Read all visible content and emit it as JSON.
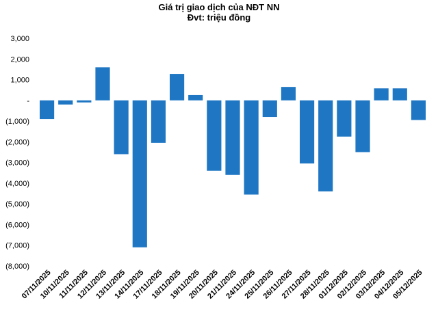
{
  "chart_data": {
    "type": "bar",
    "title": "Giá trị giao dịch của NĐT NN",
    "subtitle": "Đvt: triệu đồng",
    "categories": [
      "07/11/2025",
      "10/11/2025",
      "11/11/2025",
      "12/11/2025",
      "13/11/2025",
      "14/11/2025",
      "17/11/2025",
      "18/11/2025",
      "19/11/2025",
      "20/11/2025",
      "21/11/2025",
      "24/11/2025",
      "25/11/2025",
      "26/11/2025",
      "27/11/2025",
      "28/11/2025",
      "01/12/2025",
      "02/12/2025",
      "03/12/2025",
      "04/12/2025",
      "05/12/2025"
    ],
    "values": [
      -900,
      -200,
      -100,
      1600,
      -2600,
      -7100,
      -2050,
      1280,
      260,
      -3400,
      -3600,
      -4550,
      -800,
      650,
      -3050,
      -4400,
      -1750,
      -2500,
      580,
      580,
      -950
    ],
    "ylim": [
      -8000,
      3000
    ],
    "yticks": [
      3000,
      2000,
      1000,
      0,
      -1000,
      -2000,
      -3000,
      -4000,
      -5000,
      -6000,
      -7000,
      -8000
    ],
    "ytick_labels": [
      "3,000",
      "2,000",
      "1,000",
      "-",
      "(1,000)",
      "(2,000)",
      "(3,000)",
      "(4,000)",
      "(5,000)",
      "(6,000)",
      "(7,000)",
      "(8,000)"
    ],
    "bar_color": "#1f77c4",
    "grid": false,
    "legend": "none"
  }
}
